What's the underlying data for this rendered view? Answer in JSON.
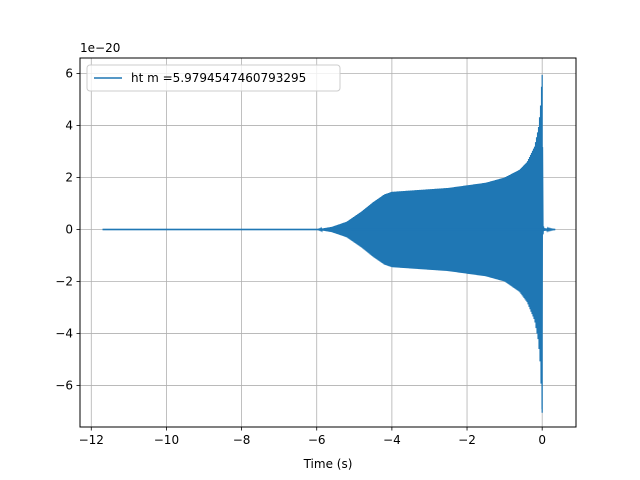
{
  "chart_data": {
    "type": "line",
    "title": "",
    "xlabel": "Time (s)",
    "ylabel": "",
    "y_offset_text": "1e−20",
    "y_scale_factor": 1e-20,
    "xlim": [
      -12.3,
      0.9
    ],
    "ylim": [
      -7.6,
      6.6
    ],
    "grid": true,
    "legend_position": "top-left",
    "x_ticks": [
      {
        "value": -12,
        "label": "−12"
      },
      {
        "value": -10,
        "label": "−10"
      },
      {
        "value": -8,
        "label": "−8"
      },
      {
        "value": -6,
        "label": "−6"
      },
      {
        "value": -4,
        "label": "−4"
      },
      {
        "value": -2,
        "label": "−2"
      },
      {
        "value": 0,
        "label": "0"
      }
    ],
    "y_ticks": [
      {
        "value": -6,
        "label": "−6"
      },
      {
        "value": -4,
        "label": "−4"
      },
      {
        "value": -2,
        "label": "−2"
      },
      {
        "value": 0,
        "label": "0"
      },
      {
        "value": 2,
        "label": "2"
      },
      {
        "value": 4,
        "label": "4"
      },
      {
        "value": 6,
        "label": "6"
      }
    ],
    "series": [
      {
        "name": "ht m =5.9794547460793295",
        "color": "#1f77b4",
        "x_range": [
          -11.7,
          0.35
        ],
        "envelope": {
          "x": [
            -11.7,
            -6.0,
            -5.6,
            -5.2,
            -4.8,
            -4.5,
            -4.2,
            -4.0,
            -3.5,
            -3.0,
            -2.5,
            -2.0,
            -1.5,
            -1.0,
            -0.6,
            -0.4,
            -0.2,
            -0.1,
            -0.05,
            0.0,
            0.02,
            0.05,
            0.35
          ],
          "upper": [
            0.0,
            0.0,
            0.1,
            0.3,
            0.7,
            1.05,
            1.35,
            1.45,
            1.5,
            1.55,
            1.6,
            1.7,
            1.8,
            2.0,
            2.3,
            2.6,
            3.2,
            3.9,
            4.6,
            5.95,
            0.2,
            0.05,
            0.0
          ],
          "lower": [
            0.0,
            0.0,
            -0.1,
            -0.3,
            -0.7,
            -1.05,
            -1.35,
            -1.45,
            -1.5,
            -1.55,
            -1.6,
            -1.7,
            -1.8,
            -2.0,
            -2.4,
            -2.8,
            -3.5,
            -4.3,
            -5.2,
            -7.05,
            -0.2,
            -0.05,
            0.0
          ]
        }
      }
    ]
  }
}
